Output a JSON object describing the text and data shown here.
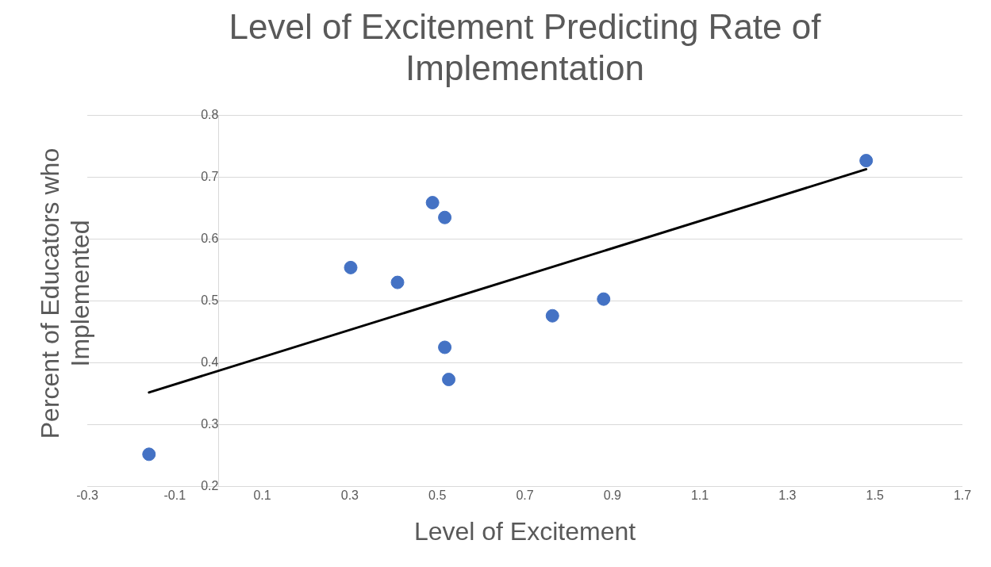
{
  "chart_data": {
    "type": "scatter",
    "title": "Level of Excitement Predicting Rate of Implementation",
    "xlabel": "Level of Excitement",
    "ylabel": "Percent of Educators who Implemented",
    "xlim": [
      -0.3,
      1.7
    ],
    "xticks": [
      -0.3,
      -0.1,
      0.1,
      0.3,
      0.5,
      0.7,
      0.9,
      1.1,
      1.3,
      1.5,
      1.7
    ],
    "ylim": [
      0.2,
      0.8
    ],
    "yticks": [
      0.2,
      0.3,
      0.4,
      0.5,
      0.6,
      0.7,
      0.8
    ],
    "grid": "y",
    "legend": false,
    "marker": "circle",
    "series": [
      {
        "color": "#4472c4",
        "x": [
          -0.159,
          0.302,
          0.409,
          0.489,
          0.517,
          0.517,
          0.526,
          0.763,
          0.88,
          1.48
        ],
        "values": [
          0.252,
          0.554,
          0.53,
          0.659,
          0.635,
          0.425,
          0.373,
          0.476,
          0.503,
          0.727
        ]
      },
      {
        "type": "line",
        "color": "#000000",
        "line_style": "solid",
        "marker": "none",
        "x": [
          -0.159,
          1.48
        ],
        "values": [
          0.352,
          0.713
        ]
      }
    ]
  }
}
